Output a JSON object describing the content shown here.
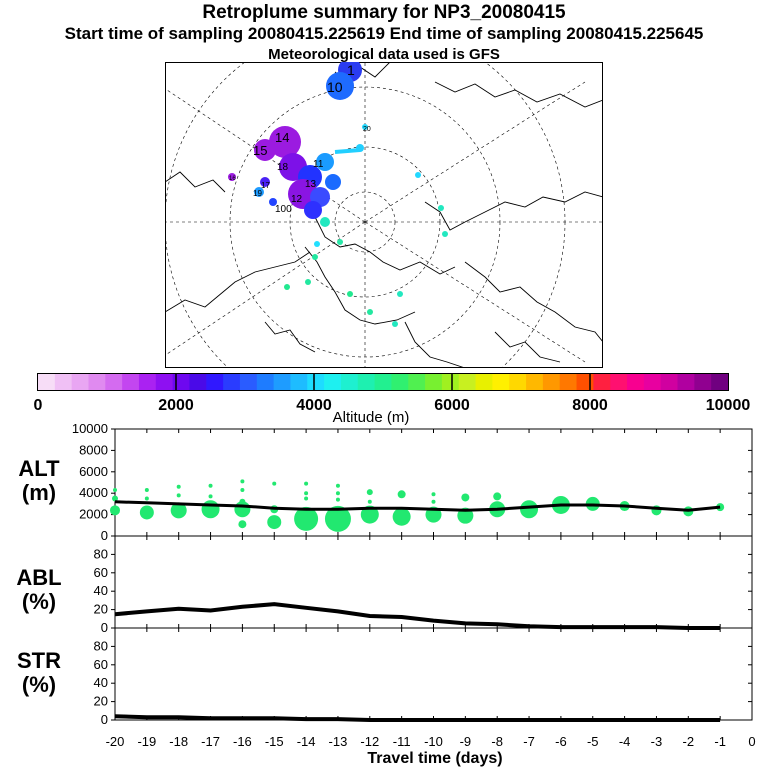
{
  "titles": {
    "line1": "Retroplume summary for NP3_20080415",
    "line2": "Start time of sampling 20080415.225619     End time of sampling 20080415.225645",
    "line3": "Meteorological data used is GFS"
  },
  "colorbar": {
    "label": "Altitude (m)",
    "ticks": [
      "0",
      "2000",
      "4000",
      "6000",
      "8000",
      "10000"
    ],
    "min": 0,
    "max": 10000
  },
  "map_labels": [
    {
      "text": "1"
    },
    {
      "text": "10"
    },
    {
      "text": "15"
    },
    {
      "text": "14"
    },
    {
      "text": "13"
    },
    {
      "text": "12"
    },
    {
      "text": "11"
    },
    {
      "text": "20"
    },
    {
      "text": "18"
    },
    {
      "text": "19"
    },
    {
      "text": "17"
    },
    {
      "text": "16"
    },
    {
      "text": "100"
    }
  ],
  "panels": {
    "alt": {
      "label_top": "ALT",
      "label_bottom": "(m)"
    },
    "abl": {
      "label_top": "ABL",
      "label_bottom": "(%)"
    },
    "str": {
      "label_top": "STR",
      "label_bottom": "(%)"
    }
  },
  "chart_data": [
    {
      "type": "scatter",
      "title": "ALT (m)",
      "xlabel": "Travel time (days)",
      "ylabel": "ALT (m)",
      "xlim": [
        -20,
        0
      ],
      "ylim": [
        0,
        10000
      ],
      "yticks": [
        "0",
        "2000",
        "4000",
        "6000",
        "8000",
        "10000"
      ],
      "xticks": [
        "-20",
        "-19",
        "-18",
        "-17",
        "-16",
        "-15",
        "-14",
        "-13",
        "-12",
        "-11",
        "-10",
        "-9",
        "-8",
        "-7",
        "-6",
        "-5",
        "-4",
        "-3",
        "-2",
        "-1",
        "0"
      ],
      "series": [
        {
          "name": "mean altitude",
          "x": [
            -20,
            -19,
            -18,
            -17,
            -16,
            -15,
            -14,
            -13,
            -12,
            -11,
            -10,
            -9,
            -8,
            -7,
            -6,
            -5,
            -4,
            -3,
            -2,
            -1
          ],
          "y": [
            3200,
            3100,
            3000,
            2900,
            2800,
            2600,
            2500,
            2500,
            2600,
            2600,
            2500,
            2400,
            2500,
            2700,
            2900,
            2900,
            2800,
            2600,
            2400,
            2700
          ]
        },
        {
          "name": "clusters",
          "points": [
            {
              "x": -20,
              "y": 4300,
              "s": 2
            },
            {
              "x": -20,
              "y": 3500,
              "s": 3
            },
            {
              "x": -20,
              "y": 2400,
              "s": 5
            },
            {
              "x": -19,
              "y": 4300,
              "s": 2
            },
            {
              "x": -19,
              "y": 3500,
              "s": 2
            },
            {
              "x": -19,
              "y": 2200,
              "s": 7
            },
            {
              "x": -18,
              "y": 4600,
              "s": 2
            },
            {
              "x": -18,
              "y": 3800,
              "s": 2
            },
            {
              "x": -18,
              "y": 2400,
              "s": 8
            },
            {
              "x": -17,
              "y": 4700,
              "s": 2
            },
            {
              "x": -17,
              "y": 3700,
              "s": 2
            },
            {
              "x": -17,
              "y": 2500,
              "s": 9
            },
            {
              "x": -16,
              "y": 5100,
              "s": 2
            },
            {
              "x": -16,
              "y": 4300,
              "s": 2
            },
            {
              "x": -16,
              "y": 3200,
              "s": 3
            },
            {
              "x": -16,
              "y": 2500,
              "s": 8
            },
            {
              "x": -16,
              "y": 1100,
              "s": 4
            },
            {
              "x": -15,
              "y": 4900,
              "s": 2
            },
            {
              "x": -15,
              "y": 2500,
              "s": 4
            },
            {
              "x": -15,
              "y": 1300,
              "s": 7
            },
            {
              "x": -14,
              "y": 4900,
              "s": 2
            },
            {
              "x": -14,
              "y": 4000,
              "s": 2
            },
            {
              "x": -14,
              "y": 3500,
              "s": 2
            },
            {
              "x": -14,
              "y": 1600,
              "s": 12
            },
            {
              "x": -13,
              "y": 4700,
              "s": 2
            },
            {
              "x": -13,
              "y": 4000,
              "s": 2
            },
            {
              "x": -13,
              "y": 3400,
              "s": 2
            },
            {
              "x": -13,
              "y": 1600,
              "s": 13
            },
            {
              "x": -12,
              "y": 4100,
              "s": 3
            },
            {
              "x": -12,
              "y": 3200,
              "s": 2
            },
            {
              "x": -12,
              "y": 2000,
              "s": 9
            },
            {
              "x": -11,
              "y": 3900,
              "s": 4
            },
            {
              "x": -11,
              "y": 1800,
              "s": 9
            },
            {
              "x": -10,
              "y": 3900,
              "s": 2
            },
            {
              "x": -10,
              "y": 3200,
              "s": 2
            },
            {
              "x": -10,
              "y": 2000,
              "s": 8
            },
            {
              "x": -9,
              "y": 3600,
              "s": 4
            },
            {
              "x": -9,
              "y": 1900,
              "s": 8
            },
            {
              "x": -8,
              "y": 3700,
              "s": 4
            },
            {
              "x": -8,
              "y": 2500,
              "s": 8
            },
            {
              "x": -7,
              "y": 2500,
              "s": 9
            },
            {
              "x": -6,
              "y": 2900,
              "s": 9
            },
            {
              "x": -5,
              "y": 3000,
              "s": 7
            },
            {
              "x": -4,
              "y": 2800,
              "s": 5
            },
            {
              "x": -3,
              "y": 2400,
              "s": 5
            },
            {
              "x": -2,
              "y": 2300,
              "s": 5
            },
            {
              "x": -1,
              "y": 2700,
              "s": 4
            }
          ]
        }
      ]
    },
    {
      "type": "line",
      "title": "ABL (%)",
      "ylabel": "ABL (%)",
      "xlim": [
        -20,
        0
      ],
      "ylim": [
        0,
        100
      ],
      "yticks": [
        "0",
        "20",
        "40",
        "60",
        "80"
      ],
      "series": [
        {
          "name": "ABL",
          "x": [
            -20,
            -19,
            -18,
            -17,
            -16,
            -15,
            -14,
            -13,
            -12,
            -11,
            -10,
            -9,
            -8,
            -7,
            -6,
            -5,
            -4,
            -3,
            -2,
            -1
          ],
          "y": [
            15,
            18,
            21,
            19,
            23,
            26,
            22,
            18,
            13,
            12,
            8,
            5,
            4,
            2,
            1,
            1,
            1,
            1,
            0,
            0
          ]
        }
      ]
    },
    {
      "type": "line",
      "title": "STR (%)",
      "ylabel": "STR (%)",
      "xlim": [
        -20,
        0
      ],
      "ylim": [
        0,
        100
      ],
      "yticks": [
        "0",
        "20",
        "40",
        "60",
        "80"
      ],
      "series": [
        {
          "name": "STR",
          "x": [
            -20,
            -19,
            -18,
            -17,
            -16,
            -15,
            -14,
            -13,
            -12,
            -11,
            -10,
            -9,
            -8,
            -7,
            -6,
            -5,
            -4,
            -3,
            -2,
            -1
          ],
          "y": [
            4,
            3,
            3,
            2,
            2,
            2,
            1,
            1,
            0,
            0,
            0,
            0,
            0,
            0,
            0,
            0,
            0,
            0,
            0,
            0
          ]
        }
      ]
    }
  ]
}
